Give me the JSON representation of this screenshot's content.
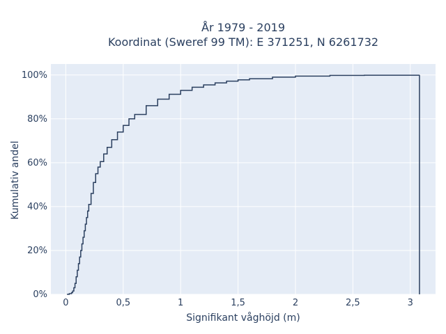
{
  "chart_data": {
    "type": "line",
    "title_line1": "År 1979 - 2019",
    "title_line2": "Koordinat (Sweref 99 TM): E 371251, N 6261732",
    "xlabel": "Signifikant våghöjd (m)",
    "ylabel": "Kumulativ andel",
    "xlim": [
      -0.13,
      3.22
    ],
    "ylim": [
      0,
      1.05
    ],
    "x_ticks": [
      0,
      0.5,
      1,
      1.5,
      2,
      2.5,
      3
    ],
    "x_tick_labels": [
      "0",
      "0,5",
      "1",
      "1,5",
      "2",
      "2,5",
      "3"
    ],
    "y_ticks": [
      0,
      0.2,
      0.4,
      0.6,
      0.8,
      1.0
    ],
    "y_tick_labels": [
      "0%",
      "20%",
      "40%",
      "60%",
      "80%",
      "100%"
    ],
    "grid": true,
    "colors": {
      "plot_background": "#e5ecf6",
      "grid": "#ffffff",
      "line": "#2a3f5f",
      "text": "#2a3f5f"
    },
    "series": [
      {
        "x": [
          0.01,
          0.03,
          0.05,
          0.06,
          0.07,
          0.08,
          0.09,
          0.1,
          0.11,
          0.12,
          0.13,
          0.14,
          0.15,
          0.16,
          0.17,
          0.18,
          0.19,
          0.2,
          0.22,
          0.24,
          0.26,
          0.28,
          0.3,
          0.33,
          0.36,
          0.4,
          0.45,
          0.5,
          0.55,
          0.6,
          0.7,
          0.8,
          0.9,
          1.0,
          1.1,
          1.2,
          1.3,
          1.4,
          1.5,
          1.6,
          1.8,
          2.0,
          2.3,
          2.6,
          3.08,
          3.08
        ],
        "y": [
          0.0,
          0.003,
          0.008,
          0.015,
          0.03,
          0.05,
          0.08,
          0.11,
          0.14,
          0.17,
          0.2,
          0.23,
          0.26,
          0.29,
          0.32,
          0.35,
          0.38,
          0.41,
          0.46,
          0.51,
          0.55,
          0.58,
          0.605,
          0.64,
          0.67,
          0.705,
          0.74,
          0.77,
          0.8,
          0.82,
          0.86,
          0.89,
          0.912,
          0.93,
          0.944,
          0.955,
          0.964,
          0.972,
          0.978,
          0.983,
          0.99,
          0.995,
          0.998,
          0.999,
          1.0,
          0.0
        ]
      }
    ]
  }
}
